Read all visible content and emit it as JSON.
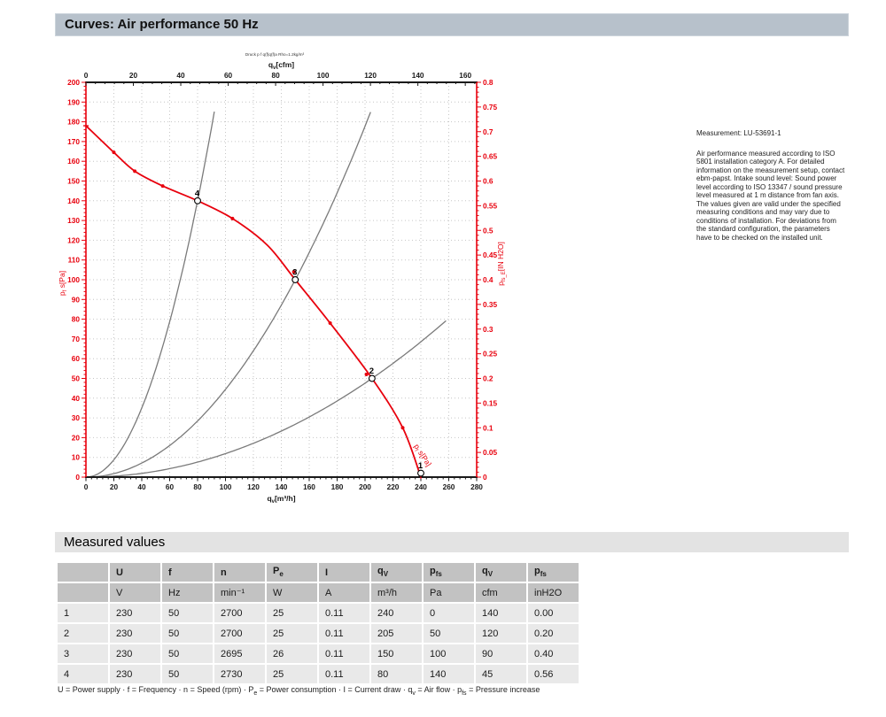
{
  "page": {
    "title": "Curves: Air performance 50 Hz"
  },
  "side_text": {
    "measurement": "Measurement: LU-53691-1",
    "body": "Air performance measured according to ISO 5801 installation category A. For detailed information on the measurement setup, contact ebm-papst. Intake sound level: Sound power level according to ISO 13347 / sound pressure level measured at 1 m distance from fan axis. The values given are valid under the specified measuring conditions and may vary due to conditions of installation. For deviations from the standard configuration, the parameters have to be checked on the installed unit."
  },
  "chart_data": {
    "type": "line",
    "tiny_header": "Druck p f q(f)q(f)a Rho=1.2kg/m³",
    "colors": {
      "red": "#e8000d",
      "black": "#1a1a1a",
      "gray_curve": "#7a7a7a",
      "grid": "#c6c6c6"
    },
    "axes": {
      "top": {
        "label_parts": [
          {
            "t": "q"
          },
          {
            "sub": "v"
          },
          {
            "t": "[cfm]"
          }
        ],
        "min": 0,
        "max": 164.8,
        "tick_step": 20,
        "minor_step": 4,
        "tick_max_label": 160
      },
      "bottom": {
        "label_parts": [
          {
            "t": "q"
          },
          {
            "sub": "v"
          },
          {
            "t": "[m³/h]"
          }
        ],
        "min": 0,
        "max": 280,
        "tick_step": 20,
        "minor_step": 4,
        "tick_max_label": 280
      },
      "left": {
        "label_parts": [
          {
            "t": "p"
          },
          {
            "sub": "f"
          },
          {
            "t": " s[Pa]"
          }
        ],
        "min": 0,
        "max": 200,
        "tick_step": 10,
        "minor_step": 2
      },
      "right": {
        "label_parts": [
          {
            "t": "p"
          },
          {
            "sub": "fs_E"
          },
          {
            "t": "[IN H2O]"
          }
        ],
        "min": 0,
        "max": 0.8,
        "tick_step": 0.05,
        "minor_step": 0.01
      }
    },
    "grid": {
      "x_step": 20,
      "y_step": 10
    },
    "fan_curve": {
      "label_parts": [
        {
          "t": "p"
        },
        {
          "sub": "f"
        },
        {
          "t": " s[Pa]"
        }
      ],
      "points": [
        [
          0,
          178
        ],
        [
          20,
          164.5
        ],
        [
          35,
          155
        ],
        [
          55,
          147.5
        ],
        [
          80,
          140
        ],
        [
          105,
          131
        ],
        [
          130,
          117.5
        ],
        [
          150,
          100
        ],
        [
          175,
          78
        ],
        [
          205,
          50
        ],
        [
          227,
          25
        ],
        [
          240,
          0
        ]
      ]
    },
    "scatter_points": [
      [
        20,
        164.5
      ],
      [
        35,
        155
      ],
      [
        55,
        147.5
      ],
      [
        105,
        131
      ],
      [
        149,
        104
      ],
      [
        175,
        78
      ],
      [
        201,
        52
      ],
      [
        227,
        25
      ]
    ],
    "numbered_points": [
      {
        "n": "1",
        "q": 240,
        "p": 2
      },
      {
        "n": "2",
        "q": 205,
        "p": 50
      },
      {
        "n": "3",
        "q": 150,
        "p": 100
      },
      {
        "n": "4",
        "q": 80,
        "p": 140
      }
    ],
    "system_curves": [
      {
        "k": 0.021875,
        "q_end": 93
      },
      {
        "k": 0.004444,
        "q_end": 204
      },
      {
        "k": 0.00119,
        "q_end": 258
      }
    ]
  },
  "measured": {
    "section_title": "Measured values",
    "columns": [
      {
        "base": ""
      },
      {
        "base": "U"
      },
      {
        "base": "f"
      },
      {
        "base": "n"
      },
      {
        "base": "P",
        "sub": "e"
      },
      {
        "base": "I"
      },
      {
        "base": "q",
        "sub": "V"
      },
      {
        "base": "p",
        "sub": "fs"
      },
      {
        "base": "q",
        "sub": "V"
      },
      {
        "base": "p",
        "sub": "fs"
      }
    ],
    "units": [
      "",
      "V",
      "Hz",
      "min⁻¹",
      "W",
      "A",
      "m³/h",
      "Pa",
      "cfm",
      "inH2O"
    ],
    "rows": [
      [
        "1",
        "230",
        "50",
        "2700",
        "25",
        "0.11",
        "240",
        "0",
        "140",
        "0.00"
      ],
      [
        "2",
        "230",
        "50",
        "2700",
        "25",
        "0.11",
        "205",
        "50",
        "120",
        "0.20"
      ],
      [
        "3",
        "230",
        "50",
        "2695",
        "26",
        "0.11",
        "150",
        "100",
        "90",
        "0.40"
      ],
      [
        "4",
        "230",
        "50",
        "2730",
        "25",
        "0.11",
        "80",
        "140",
        "45",
        "0.56"
      ]
    ],
    "legend_segments": [
      {
        "t": "U = Power supply · f = Frequency · n = Speed (rpm) · P"
      },
      {
        "sub": "e"
      },
      {
        "t": " = Power consumption · I = Current draw · q"
      },
      {
        "sub": "v"
      },
      {
        "t": " = Air flow · p"
      },
      {
        "sub": "fs"
      },
      {
        "t": " = Pressure increase"
      }
    ]
  }
}
